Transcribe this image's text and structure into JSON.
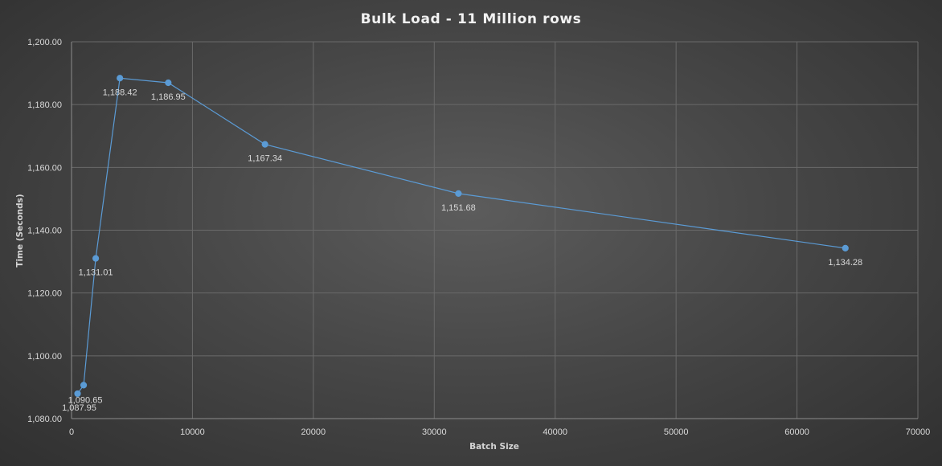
{
  "chart_data": {
    "type": "scatter",
    "title": "Bulk Load - 11 Million rows",
    "xlabel": "Batch Size",
    "ylabel": "Time (Seconds)",
    "xlim": [
      0,
      70000
    ],
    "ylim": [
      1080,
      1200
    ],
    "x_ticks": [
      0,
      10000,
      20000,
      30000,
      40000,
      50000,
      60000,
      70000
    ],
    "x_tick_labels": [
      "0",
      "10000",
      "20000",
      "30000",
      "40000",
      "50000",
      "60000",
      "70000"
    ],
    "y_ticks": [
      1080,
      1100,
      1120,
      1140,
      1160,
      1180,
      1200
    ],
    "y_tick_labels": [
      "1,080.00",
      "1,100.00",
      "1,120.00",
      "1,140.00",
      "1,160.00",
      "1,180.00",
      "1,200.00"
    ],
    "grid": true,
    "legend": "none",
    "series": [
      {
        "color": "#5b9bd5",
        "points": [
          {
            "x": 500,
            "y": 1087.95,
            "label": "1,087.95"
          },
          {
            "x": 1000,
            "y": 1090.65,
            "label": "1,090.65"
          },
          {
            "x": 2000,
            "y": 1131.01,
            "label": "1,131.01"
          },
          {
            "x": 4000,
            "y": 1188.42,
            "label": "1,188.42"
          },
          {
            "x": 8000,
            "y": 1186.95,
            "label": "1,186.95"
          },
          {
            "x": 16000,
            "y": 1167.34,
            "label": "1,167.34"
          },
          {
            "x": 32000,
            "y": 1151.68,
            "label": "1,151.68"
          },
          {
            "x": 64000,
            "y": 1134.28,
            "label": "1,134.28"
          }
        ]
      }
    ]
  }
}
